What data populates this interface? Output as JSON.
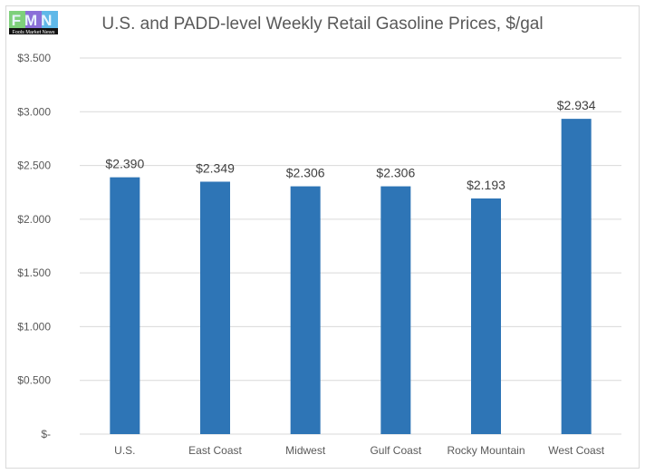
{
  "logo": {
    "text": "FMN",
    "caption": "Fools Market News"
  },
  "chart_data": {
    "type": "bar",
    "title": "U.S. and PADD-level Weekly Retail Gasoline Prices, $/gal",
    "categories": [
      "U.S.",
      "East Coast",
      "Midwest",
      "Gulf Coast",
      "Rocky Mountain",
      "West Coast"
    ],
    "values": [
      2.39,
      2.349,
      2.306,
      2.306,
      2.193,
      2.934
    ],
    "data_labels": [
      "$2.390",
      "$2.349",
      "$2.306",
      "$2.306",
      "$2.193",
      "$2.934"
    ],
    "yticks": [
      0,
      0.5,
      1.0,
      1.5,
      2.0,
      2.5,
      3.0,
      3.5
    ],
    "ytick_labels": [
      "$-",
      "$0.500",
      "$1.000",
      "$1.500",
      "$2.000",
      "$2.500",
      "$3.000",
      "$3.500"
    ],
    "ylim": [
      0,
      3.5
    ],
    "xlabel": "",
    "ylabel": "",
    "grid": true,
    "bar_color": "#2e75b6"
  }
}
